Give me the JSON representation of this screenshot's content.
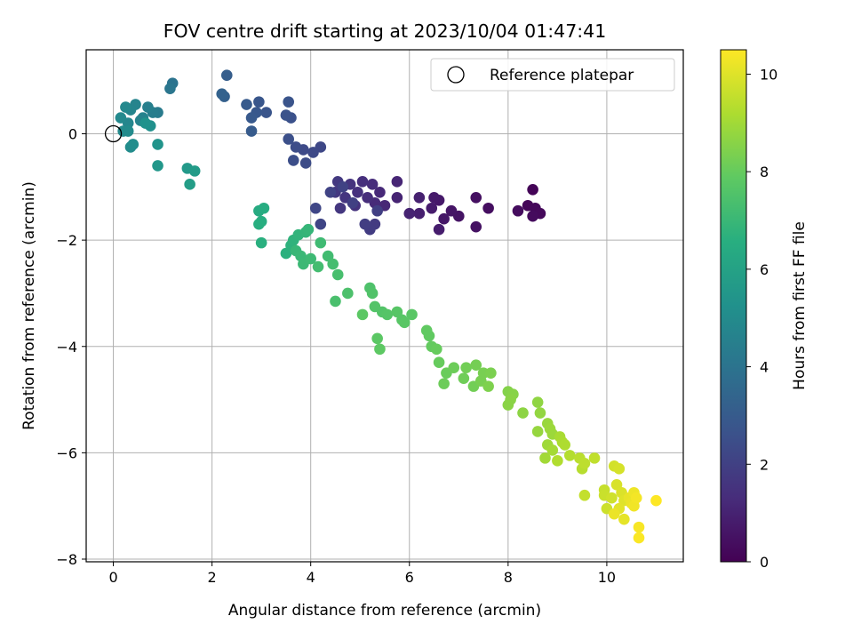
{
  "chart_data": {
    "type": "scatter",
    "title": "FOV centre drift starting at 2023/10/04 01:47:41",
    "xlabel": "Angular distance from reference (arcmin)",
    "ylabel": "Rotation from reference (arcmin)",
    "xlim": [
      -0.55,
      11.55
    ],
    "ylim": [
      -8.05,
      1.58
    ],
    "xticks": [
      0,
      2,
      4,
      6,
      8,
      10
    ],
    "yticks": [
      0,
      -2,
      -4,
      -6,
      -8
    ],
    "grid": true,
    "legend": {
      "position": "top-right",
      "entries": [
        "Reference platepar"
      ]
    },
    "reference_point": {
      "x": 0,
      "y": 0
    },
    "colorbar": {
      "label": "Hours from first FF file",
      "colormap": "viridis",
      "range": [
        0,
        10.5
      ],
      "ticks": [
        0,
        2,
        4,
        6,
        8,
        10
      ]
    },
    "series": [
      {
        "points": [
          {
            "x": 8.5,
            "y": -1.05,
            "h": 0.1
          },
          {
            "x": 8.4,
            "y": -1.35,
            "h": 0.15
          },
          {
            "x": 8.55,
            "y": -1.4,
            "h": 0.2
          },
          {
            "x": 8.65,
            "y": -1.5,
            "h": 0.25
          },
          {
            "x": 8.5,
            "y": -1.55,
            "h": 0.3
          },
          {
            "x": 8.2,
            "y": -1.45,
            "h": 0.35
          },
          {
            "x": 7.6,
            "y": -1.4,
            "h": 0.4
          },
          {
            "x": 7.35,
            "y": -1.2,
            "h": 0.45
          },
          {
            "x": 7.35,
            "y": -1.75,
            "h": 0.5
          },
          {
            "x": 7.0,
            "y": -1.55,
            "h": 0.55
          },
          {
            "x": 6.85,
            "y": -1.45,
            "h": 0.6
          },
          {
            "x": 6.7,
            "y": -1.6,
            "h": 0.65
          },
          {
            "x": 6.6,
            "y": -1.25,
            "h": 0.7
          },
          {
            "x": 6.5,
            "y": -1.2,
            "h": 0.75
          },
          {
            "x": 6.45,
            "y": -1.4,
            "h": 0.8
          },
          {
            "x": 6.6,
            "y": -1.8,
            "h": 0.85
          },
          {
            "x": 6.2,
            "y": -1.5,
            "h": 0.9
          },
          {
            "x": 6.2,
            "y": -1.2,
            "h": 0.95
          },
          {
            "x": 6.0,
            "y": -1.5,
            "h": 1.0
          },
          {
            "x": 5.75,
            "y": -1.2,
            "h": 1.05
          },
          {
            "x": 5.75,
            "y": -0.9,
            "h": 1.1
          },
          {
            "x": 5.5,
            "y": -1.35,
            "h": 1.15
          },
          {
            "x": 5.4,
            "y": -1.1,
            "h": 1.2
          },
          {
            "x": 5.3,
            "y": -1.3,
            "h": 1.25
          },
          {
            "x": 5.25,
            "y": -0.95,
            "h": 1.3
          },
          {
            "x": 5.15,
            "y": -1.2,
            "h": 1.35
          },
          {
            "x": 5.05,
            "y": -0.9,
            "h": 1.4
          },
          {
            "x": 4.95,
            "y": -1.1,
            "h": 1.45
          },
          {
            "x": 4.9,
            "y": -1.35,
            "h": 1.5
          },
          {
            "x": 4.8,
            "y": -0.95,
            "h": 1.55
          },
          {
            "x": 4.7,
            "y": -1.2,
            "h": 1.6
          },
          {
            "x": 4.6,
            "y": -1.4,
            "h": 1.65
          },
          {
            "x": 4.5,
            "y": -1.1,
            "h": 1.7
          },
          {
            "x": 4.55,
            "y": -0.9,
            "h": 1.75
          },
          {
            "x": 5.3,
            "y": -1.7,
            "h": 1.8
          },
          {
            "x": 5.2,
            "y": -1.8,
            "h": 1.85
          },
          {
            "x": 5.1,
            "y": -1.7,
            "h": 1.9
          },
          {
            "x": 5.35,
            "y": -1.45,
            "h": 1.95
          },
          {
            "x": 4.85,
            "y": -1.3,
            "h": 2.0
          },
          {
            "x": 4.65,
            "y": -1.0,
            "h": 2.05
          },
          {
            "x": 4.4,
            "y": -1.1,
            "h": 2.1
          },
          {
            "x": 4.2,
            "y": -1.7,
            "h": 2.15
          },
          {
            "x": 4.1,
            "y": -1.4,
            "h": 2.2
          },
          {
            "x": 4.2,
            "y": -0.25,
            "h": 2.25
          },
          {
            "x": 4.05,
            "y": -0.35,
            "h": 2.3
          },
          {
            "x": 3.85,
            "y": -0.3,
            "h": 2.35
          },
          {
            "x": 3.9,
            "y": -0.55,
            "h": 2.4
          },
          {
            "x": 3.7,
            "y": -0.25,
            "h": 2.45
          },
          {
            "x": 3.65,
            "y": -0.5,
            "h": 2.5
          },
          {
            "x": 3.55,
            "y": -0.1,
            "h": 2.55
          },
          {
            "x": 3.6,
            "y": 0.3,
            "h": 2.6
          },
          {
            "x": 3.5,
            "y": 0.35,
            "h": 2.65
          },
          {
            "x": 3.55,
            "y": 0.6,
            "h": 2.7
          },
          {
            "x": 3.1,
            "y": 0.4,
            "h": 2.75
          },
          {
            "x": 2.95,
            "y": 0.6,
            "h": 2.8
          },
          {
            "x": 2.9,
            "y": 0.4,
            "h": 2.85
          },
          {
            "x": 2.8,
            "y": 0.3,
            "h": 2.9
          },
          {
            "x": 2.7,
            "y": 0.55,
            "h": 2.95
          },
          {
            "x": 2.8,
            "y": 0.05,
            "h": 3.0
          },
          {
            "x": 2.3,
            "y": 1.1,
            "h": 3.1
          },
          {
            "x": 2.25,
            "y": 0.7,
            "h": 3.2
          },
          {
            "x": 2.2,
            "y": 0.75,
            "h": 3.3
          },
          {
            "x": 1.2,
            "y": 0.95,
            "h": 4.0
          },
          {
            "x": 1.15,
            "y": 0.85,
            "h": 4.1
          },
          {
            "x": 0.9,
            "y": 0.4,
            "h": 4.3
          },
          {
            "x": 0.8,
            "y": 0.4,
            "h": 4.4
          },
          {
            "x": 0.7,
            "y": 0.5,
            "h": 4.5
          },
          {
            "x": 0.6,
            "y": 0.3,
            "h": 4.6
          },
          {
            "x": 0.55,
            "y": 0.25,
            "h": 4.65
          },
          {
            "x": 0.45,
            "y": 0.55,
            "h": 4.7
          },
          {
            "x": 0.35,
            "y": 0.45,
            "h": 4.75
          },
          {
            "x": 0.3,
            "y": 0.2,
            "h": 4.8
          },
          {
            "x": 0.25,
            "y": 0.5,
            "h": 4.85
          },
          {
            "x": 0.15,
            "y": 0.3,
            "h": 4.9
          },
          {
            "x": 0.2,
            "y": 0.05,
            "h": 4.95
          },
          {
            "x": 0.3,
            "y": 0.05,
            "h": 5.0
          },
          {
            "x": 0.35,
            "y": -0.25,
            "h": 5.05
          },
          {
            "x": 0.4,
            "y": -0.2,
            "h": 5.1
          },
          {
            "x": 0.75,
            "y": 0.15,
            "h": 5.2
          },
          {
            "x": 0.65,
            "y": 0.2,
            "h": 5.3
          },
          {
            "x": 0.9,
            "y": -0.2,
            "h": 5.4
          },
          {
            "x": 0.9,
            "y": -0.6,
            "h": 5.5
          },
          {
            "x": 1.5,
            "y": -0.65,
            "h": 5.6
          },
          {
            "x": 1.65,
            "y": -0.7,
            "h": 5.7
          },
          {
            "x": 1.55,
            "y": -0.95,
            "h": 5.8
          },
          {
            "x": 2.95,
            "y": -1.45,
            "h": 6.4
          },
          {
            "x": 3.05,
            "y": -1.4,
            "h": 6.45
          },
          {
            "x": 3.0,
            "y": -1.65,
            "h": 6.5
          },
          {
            "x": 2.95,
            "y": -1.7,
            "h": 6.55
          },
          {
            "x": 3.0,
            "y": -2.05,
            "h": 6.6
          },
          {
            "x": 3.5,
            "y": -2.25,
            "h": 6.65
          },
          {
            "x": 3.6,
            "y": -2.1,
            "h": 6.7
          },
          {
            "x": 3.65,
            "y": -2.0,
            "h": 6.75
          },
          {
            "x": 3.75,
            "y": -1.9,
            "h": 6.8
          },
          {
            "x": 3.9,
            "y": -1.85,
            "h": 6.85
          },
          {
            "x": 3.95,
            "y": -1.8,
            "h": 6.9
          },
          {
            "x": 3.7,
            "y": -2.2,
            "h": 6.95
          },
          {
            "x": 3.8,
            "y": -2.3,
            "h": 7.0
          },
          {
            "x": 3.85,
            "y": -2.45,
            "h": 7.05
          },
          {
            "x": 4.0,
            "y": -2.35,
            "h": 7.1
          },
          {
            "x": 4.2,
            "y": -2.05,
            "h": 7.15
          },
          {
            "x": 4.35,
            "y": -2.3,
            "h": 7.2
          },
          {
            "x": 4.15,
            "y": -2.5,
            "h": 7.25
          },
          {
            "x": 4.45,
            "y": -2.45,
            "h": 7.3
          },
          {
            "x": 4.55,
            "y": -2.65,
            "h": 7.35
          },
          {
            "x": 4.5,
            "y": -3.15,
            "h": 7.4
          },
          {
            "x": 4.75,
            "y": -3.0,
            "h": 7.45
          },
          {
            "x": 5.2,
            "y": -2.9,
            "h": 7.5
          },
          {
            "x": 5.25,
            "y": -3.0,
            "h": 7.55
          },
          {
            "x": 5.3,
            "y": -3.25,
            "h": 7.6
          },
          {
            "x": 5.45,
            "y": -3.35,
            "h": 7.6
          },
          {
            "x": 5.55,
            "y": -3.4,
            "h": 7.65
          },
          {
            "x": 5.75,
            "y": -3.35,
            "h": 7.7
          },
          {
            "x": 5.85,
            "y": -3.5,
            "h": 7.7
          },
          {
            "x": 6.05,
            "y": -3.4,
            "h": 7.75
          },
          {
            "x": 5.9,
            "y": -3.55,
            "h": 7.75
          },
          {
            "x": 5.05,
            "y": -3.4,
            "h": 7.8
          },
          {
            "x": 5.35,
            "y": -3.85,
            "h": 7.8
          },
          {
            "x": 5.4,
            "y": -4.05,
            "h": 7.85
          },
          {
            "x": 6.35,
            "y": -3.7,
            "h": 7.9
          },
          {
            "x": 6.4,
            "y": -3.8,
            "h": 7.9
          },
          {
            "x": 6.45,
            "y": -4.0,
            "h": 7.95
          },
          {
            "x": 6.55,
            "y": -4.05,
            "h": 8.0
          },
          {
            "x": 6.6,
            "y": -4.3,
            "h": 8.0
          },
          {
            "x": 6.75,
            "y": -4.5,
            "h": 8.05
          },
          {
            "x": 6.7,
            "y": -4.7,
            "h": 8.1
          },
          {
            "x": 6.9,
            "y": -4.4,
            "h": 8.1
          },
          {
            "x": 7.1,
            "y": -4.6,
            "h": 8.15
          },
          {
            "x": 7.15,
            "y": -4.4,
            "h": 8.2
          },
          {
            "x": 7.3,
            "y": -4.75,
            "h": 8.2
          },
          {
            "x": 7.35,
            "y": -4.35,
            "h": 8.25
          },
          {
            "x": 7.45,
            "y": -4.65,
            "h": 8.3
          },
          {
            "x": 7.5,
            "y": -4.5,
            "h": 8.3
          },
          {
            "x": 7.65,
            "y": -4.5,
            "h": 8.35
          },
          {
            "x": 7.6,
            "y": -4.75,
            "h": 8.4
          },
          {
            "x": 8.0,
            "y": -4.85,
            "h": 8.5
          },
          {
            "x": 8.1,
            "y": -4.9,
            "h": 8.55
          },
          {
            "x": 8.0,
            "y": -5.1,
            "h": 8.6
          },
          {
            "x": 8.05,
            "y": -5.0,
            "h": 8.6
          },
          {
            "x": 8.3,
            "y": -5.25,
            "h": 8.65
          },
          {
            "x": 8.6,
            "y": -5.05,
            "h": 8.7
          },
          {
            "x": 8.65,
            "y": -5.25,
            "h": 8.75
          },
          {
            "x": 8.6,
            "y": -5.6,
            "h": 8.8
          },
          {
            "x": 8.8,
            "y": -5.45,
            "h": 8.85
          },
          {
            "x": 8.85,
            "y": -5.55,
            "h": 8.9
          },
          {
            "x": 8.9,
            "y": -5.65,
            "h": 8.9
          },
          {
            "x": 8.8,
            "y": -5.85,
            "h": 8.95
          },
          {
            "x": 8.75,
            "y": -6.1,
            "h": 9.0
          },
          {
            "x": 8.9,
            "y": -5.95,
            "h": 9.05
          },
          {
            "x": 9.05,
            "y": -5.7,
            "h": 9.1
          },
          {
            "x": 9.1,
            "y": -5.8,
            "h": 9.15
          },
          {
            "x": 9.15,
            "y": -5.85,
            "h": 9.2
          },
          {
            "x": 9.0,
            "y": -6.15,
            "h": 9.25
          },
          {
            "x": 9.25,
            "y": -6.05,
            "h": 9.3
          },
          {
            "x": 9.5,
            "y": -6.3,
            "h": 9.35
          },
          {
            "x": 9.45,
            "y": -6.1,
            "h": 9.4
          },
          {
            "x": 9.55,
            "y": -6.2,
            "h": 9.45
          },
          {
            "x": 9.75,
            "y": -6.1,
            "h": 9.5
          },
          {
            "x": 9.55,
            "y": -6.8,
            "h": 9.55
          },
          {
            "x": 9.95,
            "y": -6.7,
            "h": 9.6
          },
          {
            "x": 9.95,
            "y": -6.8,
            "h": 9.65
          },
          {
            "x": 10.0,
            "y": -7.05,
            "h": 9.7
          },
          {
            "x": 10.1,
            "y": -6.85,
            "h": 9.75
          },
          {
            "x": 10.15,
            "y": -6.25,
            "h": 9.8
          },
          {
            "x": 10.25,
            "y": -6.3,
            "h": 9.85
          },
          {
            "x": 10.2,
            "y": -6.6,
            "h": 9.9
          },
          {
            "x": 10.3,
            "y": -6.75,
            "h": 9.95
          },
          {
            "x": 10.35,
            "y": -6.9,
            "h": 10.0
          },
          {
            "x": 10.25,
            "y": -7.05,
            "h": 10.05
          },
          {
            "x": 10.35,
            "y": -7.25,
            "h": 10.1
          },
          {
            "x": 10.45,
            "y": -6.85,
            "h": 10.15
          },
          {
            "x": 10.5,
            "y": -6.95,
            "h": 10.2
          },
          {
            "x": 10.55,
            "y": -6.75,
            "h": 10.25
          },
          {
            "x": 10.55,
            "y": -7.0,
            "h": 10.3
          },
          {
            "x": 10.6,
            "y": -6.85,
            "h": 10.35
          },
          {
            "x": 10.65,
            "y": -7.4,
            "h": 10.4
          },
          {
            "x": 10.65,
            "y": -7.6,
            "h": 10.45
          },
          {
            "x": 11.0,
            "y": -6.9,
            "h": 10.5
          },
          {
            "x": 10.15,
            "y": -7.15,
            "h": 10.2
          }
        ]
      }
    ]
  }
}
